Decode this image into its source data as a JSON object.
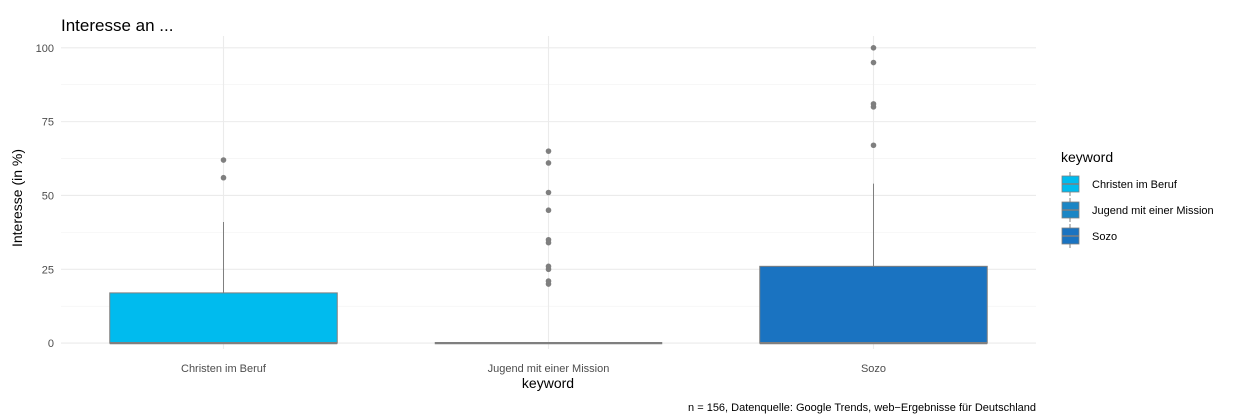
{
  "chart_data": {
    "type": "boxplot",
    "title": "Interesse an ...",
    "xlabel": "keyword",
    "ylabel": "Interesse (in %)",
    "caption": "n = 156, Datenquelle: Google Trends, web−Ergebnisse für Deutschland",
    "ylim": [
      -2,
      104
    ],
    "yticks": [
      0,
      25,
      50,
      75,
      100
    ],
    "grid": true,
    "legend": {
      "title": "keyword",
      "position": "right"
    },
    "categories": [
      "Christen im Beruf",
      "Jugend mit einer Mission",
      "Sozo"
    ],
    "series": [
      {
        "name": "Christen im Beruf",
        "color": "#00BBEE",
        "min": 0,
        "q1": 0,
        "median": 0,
        "q3": 17,
        "max": 41,
        "outliers": [
          56,
          62
        ]
      },
      {
        "name": "Jugend mit einer Mission",
        "color": "#1B86C5",
        "min": 0,
        "q1": 0,
        "median": 0,
        "q3": 0,
        "max": 0,
        "outliers": [
          20,
          21,
          25,
          26,
          34,
          35,
          45,
          51,
          61,
          65
        ]
      },
      {
        "name": "Sozo",
        "color": "#1A73C1",
        "min": 0,
        "q1": 0,
        "median": 0,
        "q3": 26,
        "max": 54,
        "outliers": [
          67,
          80,
          81,
          95,
          100
        ]
      }
    ]
  }
}
